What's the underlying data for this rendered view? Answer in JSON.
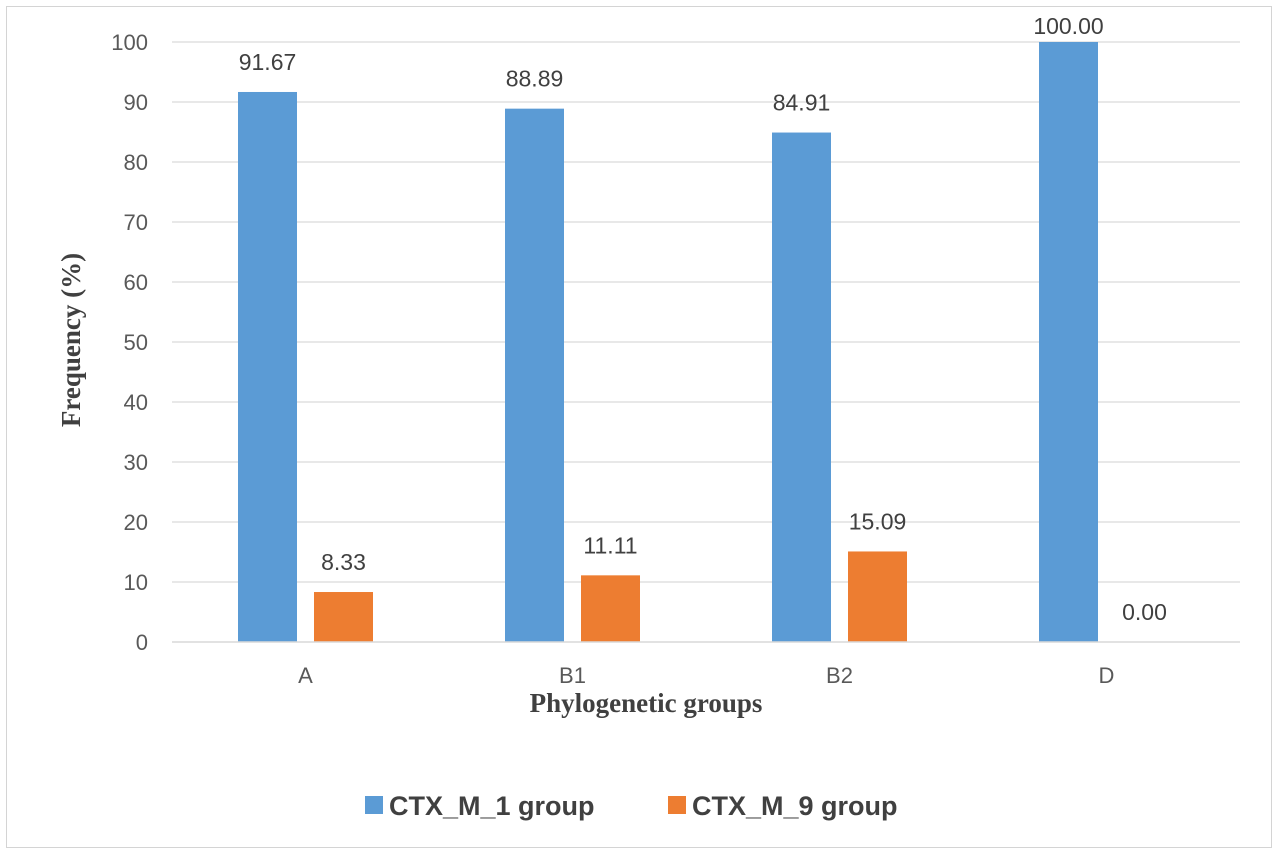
{
  "chart_data": {
    "type": "bar",
    "categories": [
      "A",
      "B1",
      "B2",
      "D"
    ],
    "series": [
      {
        "name": "CTX_M_1 group",
        "values": [
          91.67,
          88.89,
          84.91,
          100.0
        ],
        "labels": [
          "91.67",
          "88.89",
          "84.91",
          "100.00"
        ],
        "color": "#5B9BD5"
      },
      {
        "name": "CTX_M_9 group",
        "values": [
          8.33,
          11.11,
          15.09,
          0.0
        ],
        "labels": [
          "8.33",
          "11.11",
          "15.09",
          "0.00"
        ],
        "color": "#ED7D31"
      }
    ],
    "xlabel": "Phylogenetic groups",
    "ylabel": "Frequency (%)",
    "ylim": [
      0,
      100
    ],
    "yticks": [
      "0",
      "10",
      "20",
      "30",
      "40",
      "50",
      "60",
      "70",
      "80",
      "90",
      "100"
    ],
    "grid": true,
    "legend": "bottom"
  }
}
